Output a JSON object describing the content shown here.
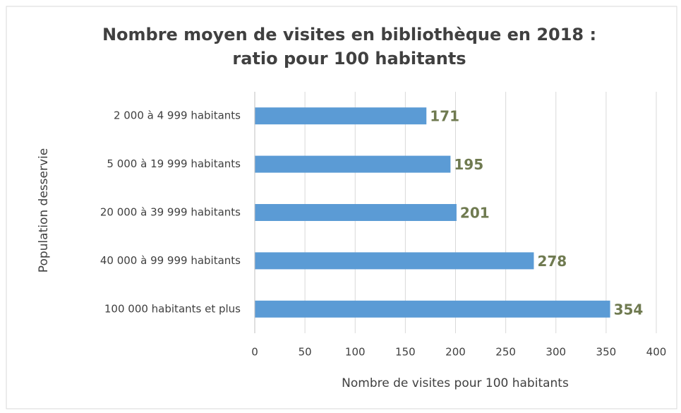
{
  "chart_data": {
    "type": "bar",
    "orientation": "horizontal",
    "title": [
      "Nombre moyen  de visites en bibliothèque en 2018 :",
      "ratio pour 100 habitants"
    ],
    "categories": [
      "2 000 à 4 999 habitants",
      "5 000 à 19 999 habitants",
      "20 000 à 39 999 habitants",
      "40 000 à 99 999 habitants",
      "100 000 habitants et plus"
    ],
    "values": [
      171,
      195,
      201,
      278,
      354
    ],
    "color": "#5b9bd5",
    "label_color": "#6f7a50",
    "xlabel": "Nombre  de visites pour 100 habitants",
    "ylabel": "Population desservie",
    "xlim": [
      0,
      400
    ],
    "xticks": [
      0,
      50,
      100,
      150,
      200,
      250,
      300,
      350,
      400
    ],
    "grid": true
  }
}
